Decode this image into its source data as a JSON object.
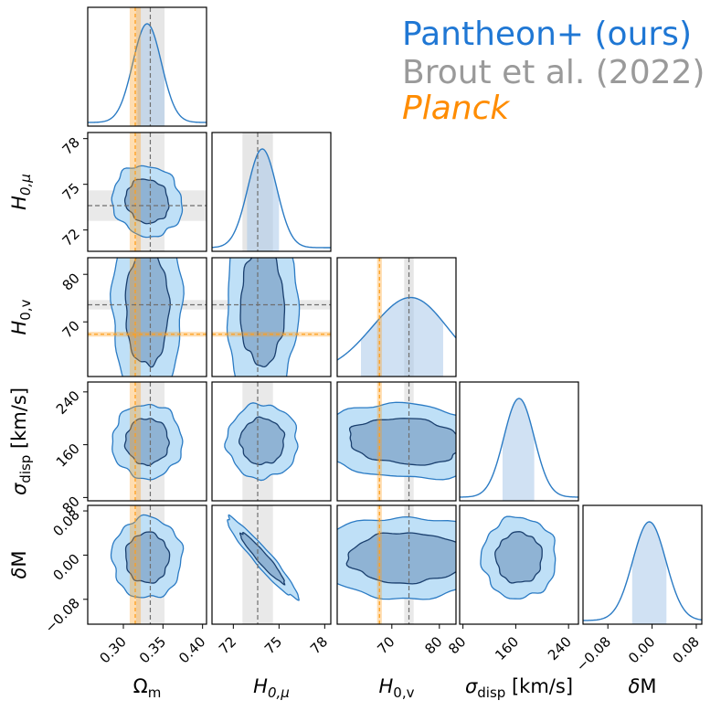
{
  "legend": [
    {
      "label": "Pantheon+ (ours)",
      "color": "#1f77d4",
      "italic": false
    },
    {
      "label": "Brout et al. (2022)",
      "color": "#9a9a9a",
      "italic": false
    },
    {
      "label": "Planck",
      "color": "#ff8c00",
      "italic": true
    }
  ],
  "colors": {
    "pantheon_line": "#2b7bc4",
    "pantheon_fill_outer": "#bfe0f7",
    "pantheon_fill_inner": "#8fb3d4",
    "inner_contour": "#1a3f6e",
    "brout": "#9a9a9a",
    "planck": "#ff9f1c"
  },
  "chart_data": {
    "type": "corner",
    "parameters": [
      {
        "name": "Omega_m",
        "label": "Ωm",
        "sym": "Ω",
        "sub": "m",
        "sub_italic": false,
        "range": [
          0.255,
          0.405
        ],
        "ticks": [
          0.3,
          0.35,
          0.4
        ],
        "tick_labels": [
          "0.30",
          "0.35",
          "0.40"
        ],
        "peak": 0.33,
        "sigma": 0.018,
        "hdi": [
          0.318,
          0.352
        ],
        "brout": {
          "value": 0.334,
          "band": [
            0.316,
            0.352
          ]
        },
        "planck": {
          "value": 0.315,
          "band": [
            0.308,
            0.322
          ]
        }
      },
      {
        "name": "H0_mu",
        "label": "H0,μ",
        "sym": "H",
        "sub": "0,μ",
        "sub_italic": true,
        "range": [
          70.6,
          78.4
        ],
        "ticks": [
          72,
          75,
          78
        ],
        "tick_labels": [
          "72",
          "75",
          "78"
        ],
        "peak": 73.9,
        "sigma": 0.95,
        "hdi": [
          72.9,
          75.0
        ],
        "brout": {
          "value": 73.6,
          "band": [
            72.6,
            74.6
          ]
        },
        "planck": null
      },
      {
        "name": "H0_v",
        "label": "H0,v",
        "sym": "H",
        "sub": "0,v",
        "sub_italic": false,
        "range": [
          58.5,
          83.5
        ],
        "ticks": [
          70,
          80
        ],
        "tick_labels": [
          "70",
          "80"
        ],
        "peak": 73.0,
        "sigma": 8.0,
        "hdi": [
          63.5,
          80.8
        ],
        "brout": {
          "value": 73.6,
          "band": [
            72.6,
            74.6
          ]
        },
        "planck": {
          "value": 67.4,
          "band": [
            66.9,
            67.9
          ]
        }
      },
      {
        "name": "sigma_disp",
        "label": "σdisp [km/s]",
        "sym": "σ",
        "sub": "disp",
        "sub_italic": false,
        "unit": " [km/s]",
        "range": [
          75,
          255
        ],
        "ticks": [
          80,
          160,
          240
        ],
        "tick_labels": [
          "80",
          "160",
          "240"
        ],
        "peak": 165,
        "sigma": 23,
        "hdi": [
          140,
          188
        ],
        "brout": null,
        "planck": null
      },
      {
        "name": "delta_M",
        "label": "δM",
        "sym": "δ",
        "sub": "",
        "sub_italic": false,
        "tail": "M",
        "range": [
          -0.125,
          0.09
        ],
        "ticks": [
          -0.08,
          0.0,
          0.08
        ],
        "tick_labels": [
          "−0.08",
          "0.00",
          "0.08"
        ],
        "peak": -0.005,
        "sigma": 0.03,
        "hdi": [
          -0.036,
          0.026
        ],
        "brout": null,
        "planck": null
      }
    ],
    "contour_levels": [
      "1σ",
      "2σ"
    ],
    "correlations": [
      {
        "pair": [
          "Omega_m",
          "H0_mu"
        ],
        "rho": -0.1
      },
      {
        "pair": [
          "Omega_m",
          "H0_v"
        ],
        "rho": 0.0
      },
      {
        "pair": [
          "H0_mu",
          "H0_v"
        ],
        "rho": 0.0
      },
      {
        "pair": [
          "Omega_m",
          "sigma_disp"
        ],
        "rho": 0.0
      },
      {
        "pair": [
          "H0_mu",
          "sigma_disp"
        ],
        "rho": 0.0
      },
      {
        "pair": [
          "H0_v",
          "sigma_disp"
        ],
        "rho": -0.15
      },
      {
        "pair": [
          "Omega_m",
          "delta_M"
        ],
        "rho": 0.0
      },
      {
        "pair": [
          "H0_mu",
          "delta_M"
        ],
        "rho": -0.95
      },
      {
        "pair": [
          "H0_v",
          "delta_M"
        ],
        "rho": 0.0
      },
      {
        "pair": [
          "sigma_disp",
          "delta_M"
        ],
        "rho": 0.0
      }
    ]
  }
}
